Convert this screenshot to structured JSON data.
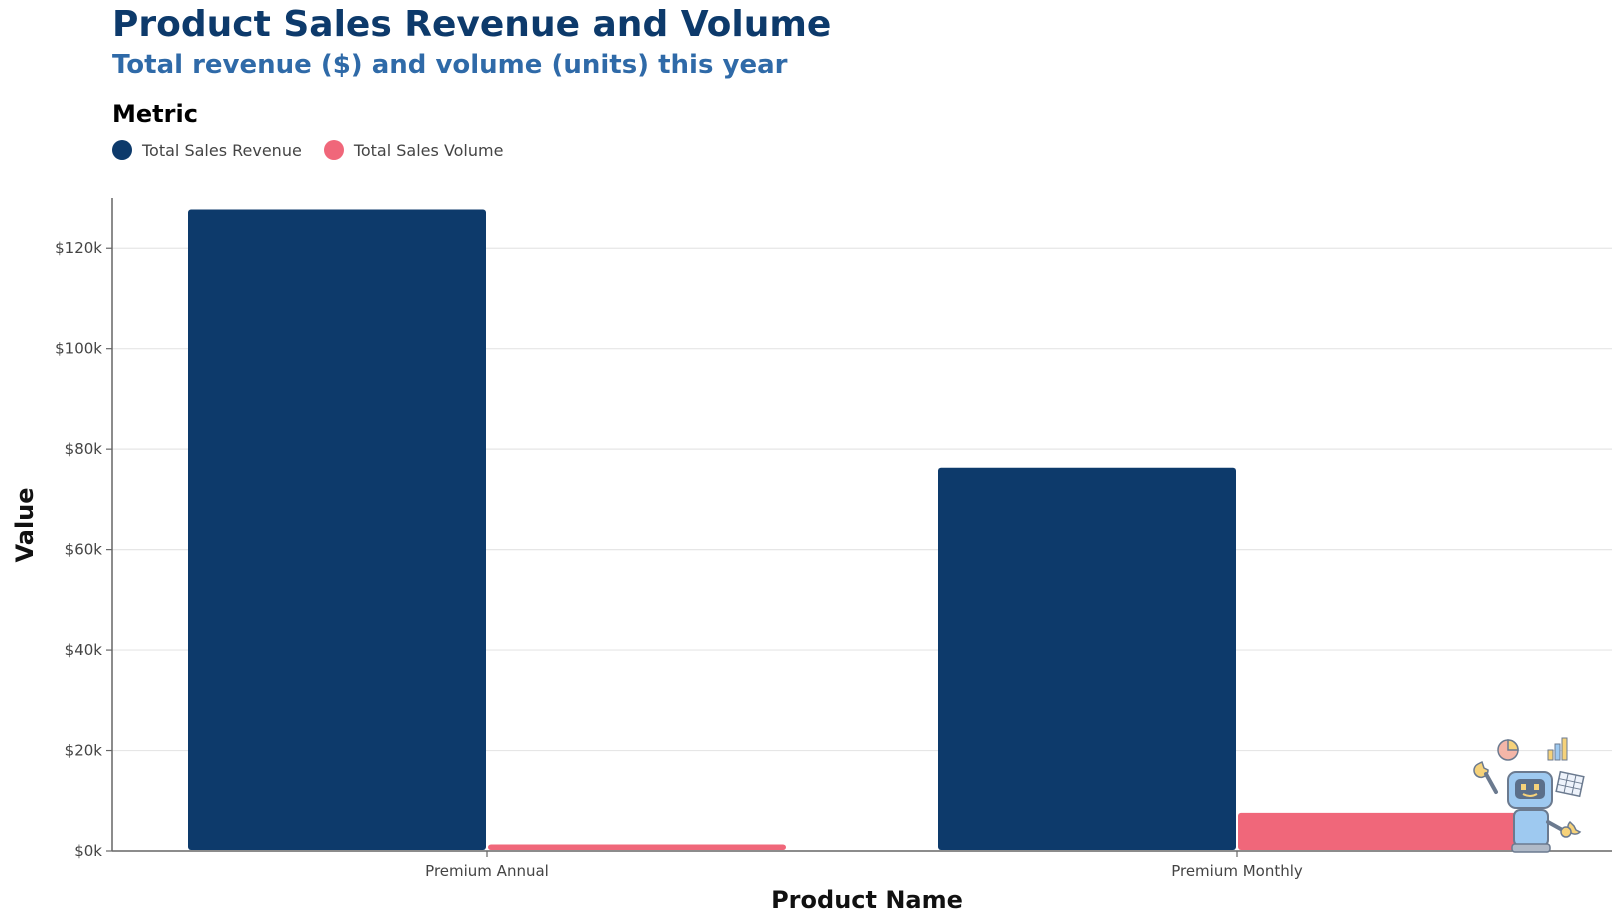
{
  "chart_data": {
    "type": "bar",
    "title": "Product Sales Revenue and Volume",
    "subtitle": "Total revenue ($) and volume (units) this year",
    "legend_title": "Metric",
    "legend_position": "top-left",
    "xlabel": "Product Name",
    "ylabel": "Value",
    "categories": [
      "Premium Annual",
      "Premium Monthly"
    ],
    "series": [
      {
        "name": "Total Sales Revenue",
        "color": "#0d3a6b",
        "values": [
          127700,
          76300
        ]
      },
      {
        "name": "Total Sales Volume",
        "color": "#f0677a",
        "values": [
          1300,
          7600
        ]
      }
    ],
    "ylim": [
      0,
      130000
    ],
    "yticks": [
      0,
      20000,
      40000,
      60000,
      80000,
      100000,
      120000
    ],
    "ytick_labels": [
      "$0k",
      "$20k",
      "$40k",
      "$60k",
      "$80k",
      "$100k",
      "$120k"
    ],
    "grid": true
  },
  "decoration": {
    "icon": "robot-mascot-icon"
  }
}
